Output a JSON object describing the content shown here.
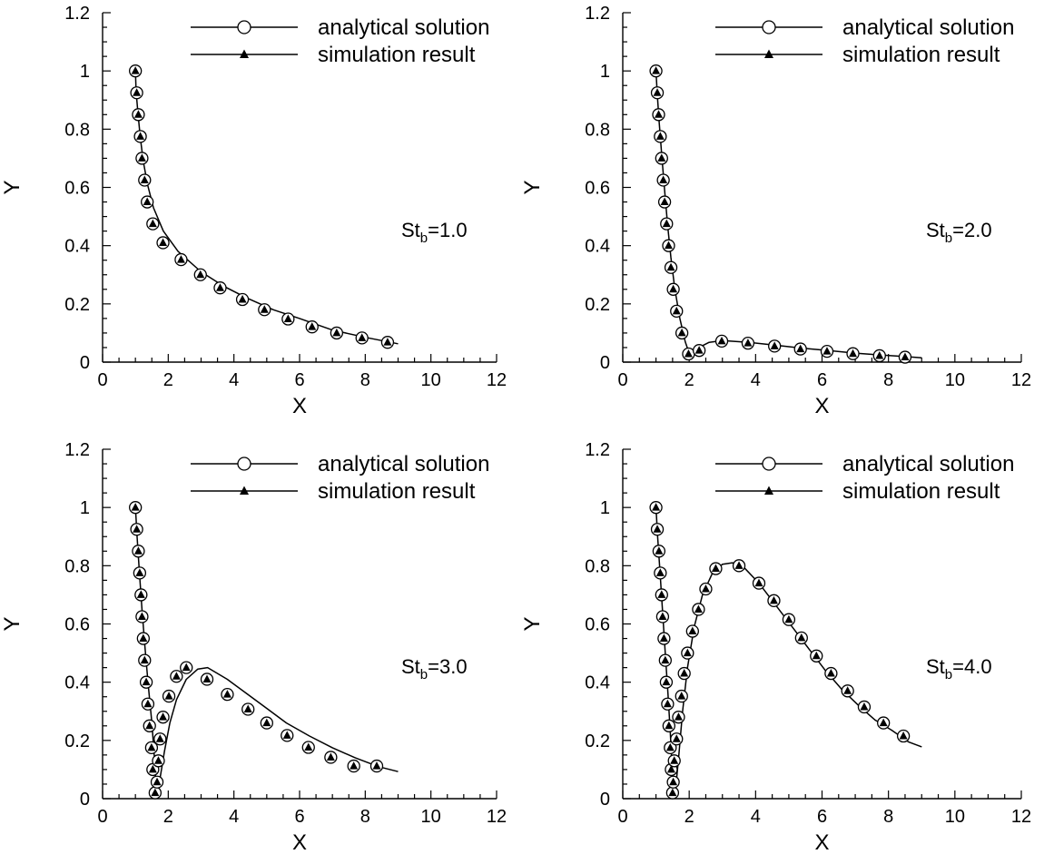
{
  "legend": {
    "analytical_label": "analytical solution",
    "simulation_label": "simulation result"
  },
  "chart_data": [
    {
      "type": "line",
      "xlabel": "X",
      "ylabel": "Y",
      "xlim": [
        0,
        12
      ],
      "ylim": [
        0,
        1.2
      ],
      "xticks": [
        "0",
        "2",
        "4",
        "6",
        "8",
        "10",
        "12"
      ],
      "yticks": [
        "0",
        "0.2",
        "0.4",
        "0.6",
        "0.8",
        "1",
        "1.2"
      ],
      "annotation": {
        "base": "St",
        "sub": "b",
        "rest": "=1.0"
      },
      "legend_position": "top-right",
      "curve": {
        "x": [
          1,
          1.02,
          1.08,
          1.15,
          1.24,
          1.37,
          1.55,
          1.85,
          2.3,
          3.0,
          3.7,
          4.4,
          5.2,
          6,
          7,
          8,
          9
        ],
        "y": [
          1,
          0.93,
          0.85,
          0.77,
          0.69,
          0.61,
          0.53,
          0.45,
          0.38,
          0.31,
          0.26,
          0.22,
          0.18,
          0.15,
          0.11,
          0.085,
          0.063
        ]
      },
      "series": [
        {
          "marker": "circle",
          "x": [
            1.0,
            1.04,
            1.09,
            1.15,
            1.2,
            1.28,
            1.36,
            1.53,
            1.84,
            2.39,
            2.98,
            3.58,
            4.26,
            4.93,
            5.65,
            6.38,
            7.13,
            7.9,
            8.68
          ],
          "y": [
            1.0,
            0.925,
            0.85,
            0.775,
            0.7,
            0.625,
            0.55,
            0.475,
            0.41,
            0.352,
            0.3,
            0.255,
            0.215,
            0.18,
            0.148,
            0.121,
            0.1,
            0.083,
            0.068
          ]
        },
        {
          "marker": "triangle",
          "x": [
            1.0,
            1.04,
            1.09,
            1.15,
            1.2,
            1.28,
            1.36,
            1.53,
            1.84,
            2.39,
            2.98,
            3.58,
            4.26,
            4.93,
            5.65,
            6.38,
            7.13,
            7.9,
            8.68
          ],
          "y": [
            1.0,
            0.925,
            0.85,
            0.775,
            0.7,
            0.625,
            0.55,
            0.475,
            0.41,
            0.352,
            0.3,
            0.255,
            0.215,
            0.18,
            0.148,
            0.121,
            0.1,
            0.083,
            0.068
          ]
        }
      ]
    },
    {
      "type": "line",
      "xlabel": "X",
      "ylabel": "Y",
      "xlim": [
        0,
        12
      ],
      "ylim": [
        0,
        1.2
      ],
      "xticks": [
        "0",
        "2",
        "4",
        "6",
        "8",
        "10",
        "12"
      ],
      "yticks": [
        "0",
        "0.2",
        "0.4",
        "0.6",
        "0.8",
        "1",
        "1.2"
      ],
      "annotation": {
        "base": "St",
        "sub": "b",
        "rest": "=2.0"
      },
      "legend_position": "top-right",
      "curve": {
        "x": [
          1,
          1.04,
          1.1,
          1.18,
          1.26,
          1.35,
          1.45,
          1.57,
          1.72,
          1.88,
          2.0,
          2.2,
          2.6,
          3.0,
          3.8,
          4.6,
          5.4,
          6.2,
          7.0,
          7.8,
          8.5,
          9.0
        ],
        "y": [
          1,
          0.92,
          0.82,
          0.7,
          0.59,
          0.47,
          0.36,
          0.25,
          0.15,
          0.07,
          0.03,
          0.045,
          0.068,
          0.074,
          0.068,
          0.058,
          0.048,
          0.04,
          0.031,
          0.024,
          0.019,
          0.015
        ]
      },
      "series": [
        {
          "marker": "circle",
          "x": [
            1.0,
            1.04,
            1.08,
            1.13,
            1.17,
            1.22,
            1.26,
            1.32,
            1.38,
            1.45,
            1.52,
            1.62,
            1.78,
            1.98,
            2.3,
            2.98,
            3.77,
            4.57,
            5.35,
            6.15,
            6.93,
            7.73,
            8.5
          ],
          "y": [
            1.0,
            0.925,
            0.85,
            0.775,
            0.7,
            0.625,
            0.55,
            0.475,
            0.4,
            0.325,
            0.25,
            0.175,
            0.1,
            0.028,
            0.04,
            0.072,
            0.065,
            0.055,
            0.045,
            0.037,
            0.029,
            0.022,
            0.017
          ]
        },
        {
          "marker": "triangle",
          "x": [
            1.0,
            1.04,
            1.08,
            1.13,
            1.17,
            1.22,
            1.26,
            1.32,
            1.38,
            1.45,
            1.52,
            1.62,
            1.78,
            1.98,
            2.3,
            2.98,
            3.77,
            4.57,
            5.35,
            6.15,
            6.93,
            7.73,
            8.5
          ],
          "y": [
            1.0,
            0.925,
            0.85,
            0.775,
            0.7,
            0.625,
            0.55,
            0.475,
            0.4,
            0.325,
            0.25,
            0.175,
            0.1,
            0.028,
            0.04,
            0.072,
            0.065,
            0.055,
            0.045,
            0.037,
            0.029,
            0.022,
            0.017
          ]
        }
      ]
    },
    {
      "type": "line",
      "xlabel": "X",
      "ylabel": "Y",
      "xlim": [
        0,
        12
      ],
      "ylim": [
        0,
        1.2
      ],
      "xticks": [
        "0",
        "2",
        "4",
        "6",
        "8",
        "10",
        "12"
      ],
      "yticks": [
        "0",
        "0.2",
        "0.4",
        "0.6",
        "0.8",
        "1",
        "1.2"
      ],
      "annotation": {
        "base": "St",
        "sub": "b",
        "rest": "=3.0"
      },
      "legend_position": "top-right",
      "curve": {
        "x": [
          1,
          1.05,
          1.12,
          1.2,
          1.29,
          1.39,
          1.5,
          1.58,
          1.62,
          1.67,
          1.75,
          1.88,
          2.05,
          2.25,
          2.55,
          2.9,
          3.2,
          3.8,
          4.4,
          5.0,
          5.6,
          6.3,
          7.0,
          7.7,
          8.4,
          9.0
        ],
        "y": [
          1,
          0.9,
          0.78,
          0.65,
          0.52,
          0.39,
          0.26,
          0.14,
          0.06,
          0.03,
          0.07,
          0.16,
          0.26,
          0.34,
          0.41,
          0.445,
          0.45,
          0.41,
          0.36,
          0.31,
          0.26,
          0.215,
          0.175,
          0.14,
          0.11,
          0.093
        ]
      },
      "series": [
        {
          "marker": "circle",
          "x": [
            1.0,
            1.04,
            1.09,
            1.13,
            1.17,
            1.2,
            1.24,
            1.28,
            1.33,
            1.38,
            1.43,
            1.49,
            1.53,
            1.6,
            1.66,
            1.7,
            1.75,
            1.84,
            2.02,
            2.25,
            2.55,
            3.18,
            3.8,
            4.43,
            5.0,
            5.62,
            6.27,
            6.95,
            7.65,
            8.35
          ],
          "y": [
            1.0,
            0.925,
            0.85,
            0.775,
            0.7,
            0.625,
            0.55,
            0.475,
            0.4,
            0.325,
            0.25,
            0.175,
            0.1,
            0.02,
            0.057,
            0.13,
            0.205,
            0.28,
            0.352,
            0.42,
            0.45,
            0.41,
            0.358,
            0.307,
            0.26,
            0.217,
            0.176,
            0.142,
            0.112,
            0.112
          ]
        },
        {
          "marker": "triangle",
          "x": [
            1.0,
            1.04,
            1.09,
            1.13,
            1.17,
            1.2,
            1.24,
            1.28,
            1.33,
            1.38,
            1.43,
            1.49,
            1.53,
            1.6,
            1.66,
            1.7,
            1.75,
            1.84,
            2.02,
            2.25,
            2.55,
            3.18,
            3.8,
            4.43,
            5.0,
            5.62,
            6.27,
            6.95,
            7.65,
            8.35
          ],
          "y": [
            1.0,
            0.925,
            0.85,
            0.775,
            0.7,
            0.625,
            0.55,
            0.475,
            0.4,
            0.325,
            0.25,
            0.175,
            0.1,
            0.02,
            0.057,
            0.13,
            0.205,
            0.28,
            0.352,
            0.42,
            0.45,
            0.41,
            0.358,
            0.307,
            0.26,
            0.217,
            0.176,
            0.142,
            0.112,
            0.112
          ]
        }
      ]
    },
    {
      "type": "line",
      "xlabel": "X",
      "ylabel": "Y",
      "xlim": [
        0,
        12
      ],
      "ylim": [
        0,
        1.2
      ],
      "xticks": [
        "0",
        "2",
        "4",
        "6",
        "8",
        "10",
        "12"
      ],
      "yticks": [
        "0",
        "0.2",
        "0.4",
        "0.6",
        "0.8",
        "1",
        "1.2"
      ],
      "annotation": {
        "base": "St",
        "sub": "b",
        "rest": "=4.0"
      },
      "legend_position": "top-right",
      "curve": {
        "x": [
          1,
          1.05,
          1.12,
          1.2,
          1.28,
          1.36,
          1.43,
          1.48,
          1.52,
          1.58,
          1.68,
          1.8,
          1.95,
          2.15,
          2.4,
          2.7,
          3.0,
          3.3,
          3.6,
          4.1,
          4.6,
          5.1,
          5.6,
          6.1,
          6.6,
          7.1,
          7.6,
          8.1,
          8.6,
          9.0
        ],
        "y": [
          1,
          0.9,
          0.78,
          0.64,
          0.5,
          0.36,
          0.23,
          0.12,
          0.05,
          0.02,
          0.14,
          0.3,
          0.45,
          0.59,
          0.7,
          0.775,
          0.805,
          0.81,
          0.8,
          0.74,
          0.665,
          0.59,
          0.515,
          0.44,
          0.375,
          0.32,
          0.27,
          0.235,
          0.195,
          0.178
        ]
      },
      "series": [
        {
          "marker": "circle",
          "x": [
            1.0,
            1.04,
            1.09,
            1.13,
            1.17,
            1.2,
            1.24,
            1.28,
            1.31,
            1.35,
            1.39,
            1.43,
            1.46,
            1.5,
            1.52,
            1.55,
            1.62,
            1.68,
            1.77,
            1.85,
            1.95,
            2.1,
            2.28,
            2.5,
            2.8,
            3.5,
            4.1,
            4.55,
            5.0,
            5.38,
            5.83,
            6.27,
            6.77,
            7.27,
            7.85,
            8.45
          ],
          "y": [
            1.0,
            0.925,
            0.85,
            0.775,
            0.7,
            0.625,
            0.55,
            0.475,
            0.4,
            0.325,
            0.25,
            0.175,
            0.1,
            0.02,
            0.057,
            0.13,
            0.205,
            0.28,
            0.352,
            0.43,
            0.5,
            0.575,
            0.65,
            0.72,
            0.79,
            0.8,
            0.74,
            0.68,
            0.615,
            0.552,
            0.49,
            0.43,
            0.37,
            0.315,
            0.26,
            0.215
          ]
        },
        {
          "marker": "triangle",
          "x": [
            1.0,
            1.04,
            1.09,
            1.13,
            1.17,
            1.2,
            1.24,
            1.28,
            1.31,
            1.35,
            1.39,
            1.43,
            1.46,
            1.5,
            1.52,
            1.55,
            1.62,
            1.68,
            1.77,
            1.85,
            1.95,
            2.1,
            2.28,
            2.5,
            2.8,
            3.5,
            4.1,
            4.55,
            5.0,
            5.38,
            5.83,
            6.27,
            6.77,
            7.27,
            7.85,
            8.45
          ],
          "y": [
            1.0,
            0.925,
            0.85,
            0.775,
            0.7,
            0.625,
            0.55,
            0.475,
            0.4,
            0.325,
            0.25,
            0.175,
            0.1,
            0.02,
            0.057,
            0.13,
            0.205,
            0.28,
            0.352,
            0.43,
            0.5,
            0.575,
            0.65,
            0.72,
            0.79,
            0.8,
            0.74,
            0.68,
            0.615,
            0.552,
            0.49,
            0.43,
            0.37,
            0.315,
            0.26,
            0.215
          ]
        }
      ]
    }
  ]
}
